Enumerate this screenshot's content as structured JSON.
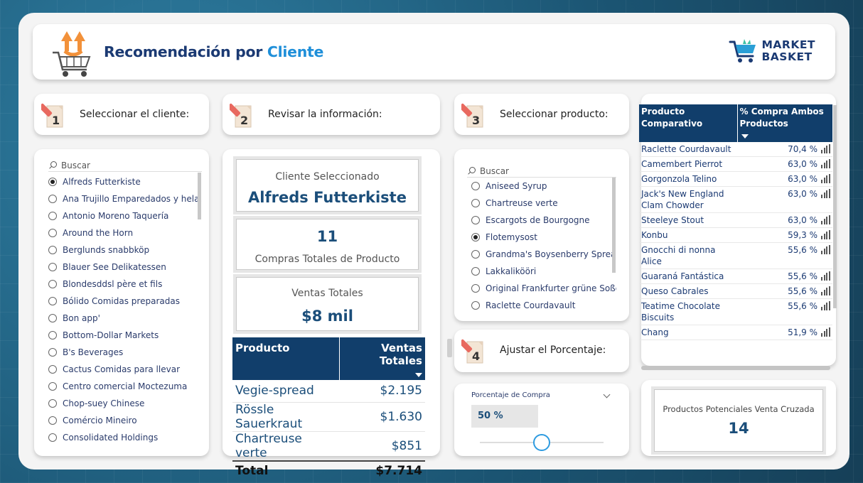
{
  "header": {
    "title_part1": "Recomendación por",
    "title_part2": "Cliente",
    "brand_line1": "MARKET",
    "brand_line2": "BASKET"
  },
  "steps": {
    "s1": {
      "number": "1",
      "label": "Seleccionar el cliente:"
    },
    "s2": {
      "number": "2",
      "label": "Revisar la información:"
    },
    "s3": {
      "number": "3",
      "label": "Seleccionar  producto:"
    },
    "s4": {
      "number": "4",
      "label": "Ajustar el Porcentaje:"
    }
  },
  "customers": {
    "search_placeholder": "Buscar",
    "items": [
      {
        "label": "Alfreds Futterkiste",
        "selected": true
      },
      {
        "label": "Ana Trujillo Emparedados y hela...",
        "selected": false
      },
      {
        "label": "Antonio Moreno Taquería",
        "selected": false
      },
      {
        "label": "Around the Horn",
        "selected": false
      },
      {
        "label": "Berglunds snabbköp",
        "selected": false
      },
      {
        "label": "Blauer See Delikatessen",
        "selected": false
      },
      {
        "label": "Blondesddsl père et fils",
        "selected": false
      },
      {
        "label": "Bólido Comidas preparadas",
        "selected": false
      },
      {
        "label": "Bon app'",
        "selected": false
      },
      {
        "label": "Bottom-Dollar Markets",
        "selected": false
      },
      {
        "label": "B's Beverages",
        "selected": false
      },
      {
        "label": "Cactus Comidas para llevar",
        "selected": false
      },
      {
        "label": "Centro comercial Moctezuma",
        "selected": false
      },
      {
        "label": "Chop-suey Chinese",
        "selected": false
      },
      {
        "label": "Comércio Mineiro",
        "selected": false
      },
      {
        "label": "Consolidated Holdings",
        "selected": false
      }
    ]
  },
  "info": {
    "client_label": "Cliente Seleccionado",
    "client_name": "Alfreds Futterkiste",
    "purchases_value": "11",
    "purchases_label": "Compras Totales de Producto",
    "sales_label": "Ventas Totales",
    "sales_value": "$8 mil",
    "table": {
      "col_product": "Producto",
      "col_sales": "Ventas Totales",
      "rows": [
        {
          "product": "Vegie-spread",
          "sales": "$2.195"
        },
        {
          "product": "Rössle Sauerkraut",
          "sales": "$1.630"
        },
        {
          "product": "Chartreuse verte",
          "sales": "$851"
        }
      ],
      "total_label": "Total",
      "total_value": "$7.714"
    }
  },
  "products": {
    "search_placeholder": "Buscar",
    "items": [
      {
        "label": "Aniseed Syrup",
        "selected": false
      },
      {
        "label": "Chartreuse verte",
        "selected": false
      },
      {
        "label": "Escargots de Bourgogne",
        "selected": false
      },
      {
        "label": "Flotemysost",
        "selected": true
      },
      {
        "label": "Grandma's Boysenberry Spread",
        "selected": false
      },
      {
        "label": "Lakkalikööri",
        "selected": false
      },
      {
        "label": "Original Frankfurter grüne Soße",
        "selected": false
      },
      {
        "label": "Raclette Courdavault",
        "selected": false
      }
    ]
  },
  "slider": {
    "label": "Porcentaje de Compra",
    "value_text": "50 %",
    "value": 50,
    "min": 0,
    "max": 100
  },
  "recommendations": {
    "col_product": "Producto Comparativo",
    "col_pct": "% Compra Ambos Productos",
    "rows": [
      {
        "product": "Raclette Courdavault",
        "pct": "70,4 %"
      },
      {
        "product": "Camembert Pierrot",
        "pct": "63,0 %"
      },
      {
        "product": "Gorgonzola Telino",
        "pct": "63,0 %"
      },
      {
        "product": "Jack's New England Clam Chowder",
        "pct": "63,0 %"
      },
      {
        "product": "Steeleye Stout",
        "pct": "63,0 %"
      },
      {
        "product": "Konbu",
        "pct": "59,3 %"
      },
      {
        "product": "Gnocchi di nonna Alice",
        "pct": "55,6 %"
      },
      {
        "product": "Guaraná Fantástica",
        "pct": "55,6 %"
      },
      {
        "product": "Queso Cabrales",
        "pct": "55,6 %"
      },
      {
        "product": "Teatime Chocolate Biscuits",
        "pct": "55,6 %"
      },
      {
        "product": "Chang",
        "pct": "51,9 %"
      }
    ]
  },
  "cross_sell": {
    "label": "Productos Potenciales Venta Cruzada",
    "value": "14"
  },
  "colors": {
    "navy": "#113e6b",
    "title_dark": "#1b3a73",
    "title_accent": "#1f8fd9",
    "slider_accent": "#2e9be0",
    "background": "#1d5f7e"
  }
}
